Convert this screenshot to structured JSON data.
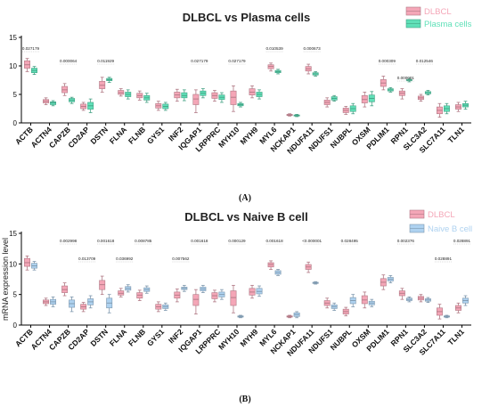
{
  "chart_data": [
    {
      "panel_label": "(A)",
      "type": "box",
      "title": "DLBCL vs Plasma cells",
      "xlabel": "",
      "ylabel": "",
      "ylim": [
        0,
        15
      ],
      "yticks": [
        "0",
        "5",
        "10",
        "15"
      ],
      "categories": [
        "ACTB",
        "ACTN4",
        "CAPZB",
        "CD2AP",
        "DSTN",
        "FLNA",
        "FLNB",
        "GYS1",
        "INF2",
        "IQGAP1",
        "LRPPRC",
        "MYH10",
        "MYH9",
        "MYL6",
        "NCKAP1",
        "NDUFA11",
        "NDUFS1",
        "NUBPL",
        "OXSM",
        "PDLIM1",
        "RPN1",
        "SLC3A2",
        "SLC7A11",
        "TLN1"
      ],
      "series": [
        {
          "name": "DLBCL",
          "color": "#f4a6b7",
          "box": [
            [
              9.0,
              9.6,
              10.2,
              10.9,
              11.3
            ],
            [
              3.2,
              3.5,
              3.8,
              4.1,
              4.4
            ],
            [
              4.8,
              5.3,
              5.8,
              6.4,
              6.9
            ],
            [
              2.2,
              2.5,
              2.9,
              3.3,
              3.6
            ],
            [
              5.4,
              6.0,
              6.6,
              7.3,
              8.0
            ],
            [
              4.7,
              5.0,
              5.3,
              5.7,
              6.0
            ],
            [
              4.0,
              4.4,
              4.8,
              5.2,
              5.6
            ],
            [
              2.2,
              2.6,
              3.0,
              3.4,
              3.8
            ],
            [
              3.8,
              4.4,
              4.9,
              5.4,
              5.9
            ],
            [
              1.8,
              3.2,
              4.2,
              5.0,
              5.8
            ],
            [
              3.8,
              4.3,
              4.8,
              5.3,
              5.7
            ],
            [
              2.0,
              3.2,
              4.5,
              5.6,
              6.5
            ],
            [
              4.4,
              4.9,
              5.4,
              6.0,
              6.5
            ],
            [
              9.1,
              9.5,
              9.9,
              10.2,
              10.5
            ],
            [
              1.2,
              1.3,
              1.4,
              1.5,
              1.6
            ],
            [
              8.6,
              9.1,
              9.5,
              9.9,
              10.3
            ],
            [
              2.8,
              3.2,
              3.6,
              4.0,
              4.4
            ],
            [
              1.5,
              1.8,
              2.2,
              2.6,
              2.9
            ],
            [
              2.8,
              3.5,
              4.1,
              4.8,
              5.4
            ],
            [
              5.8,
              6.4,
              7.0,
              7.6,
              8.2
            ],
            [
              4.2,
              4.8,
              5.2,
              5.6,
              6.0
            ],
            [
              3.8,
              4.1,
              4.4,
              4.7,
              5.0
            ],
            [
              1.0,
              1.6,
              2.2,
              2.8,
              3.4
            ],
            [
              2.0,
              2.4,
              2.8,
              3.2,
              3.6
            ]
          ]
        },
        {
          "name": "Plasma cells",
          "color": "#5fe0b8",
          "box": [
            [
              8.5,
              8.8,
              9.2,
              9.6,
              9.9
            ],
            [
              3.0,
              3.2,
              3.5,
              3.7,
              3.9
            ],
            [
              3.4,
              3.7,
              4.0,
              4.3,
              4.5
            ],
            [
              1.8,
              2.4,
              3.0,
              3.6,
              4.2
            ],
            [
              7.1,
              7.4,
              7.6,
              7.8,
              8.0
            ],
            [
              4.2,
              4.6,
              5.0,
              5.4,
              5.8
            ],
            [
              3.6,
              4.0,
              4.4,
              4.8,
              5.2
            ],
            [
              2.2,
              2.5,
              2.9,
              3.3,
              3.6
            ],
            [
              3.9,
              4.4,
              4.8,
              5.3,
              5.8
            ],
            [
              4.4,
              4.8,
              5.2,
              5.6,
              6.0
            ],
            [
              3.6,
              4.1,
              4.5,
              4.9,
              5.3
            ],
            [
              2.8,
              3.0,
              3.2,
              3.4,
              3.6
            ],
            [
              4.2,
              4.6,
              5.0,
              5.4,
              5.8
            ],
            [
              8.6,
              8.8,
              9.0,
              9.2,
              9.4
            ],
            [
              1.1,
              1.2,
              1.3,
              1.4,
              1.5
            ],
            [
              8.2,
              8.4,
              8.6,
              8.8,
              9.0
            ],
            [
              3.8,
              4.0,
              4.3,
              4.6,
              4.8
            ],
            [
              1.6,
              2.0,
              2.5,
              3.0,
              3.4
            ],
            [
              3.0,
              3.7,
              4.3,
              4.9,
              5.5
            ],
            [
              5.4,
              5.6,
              5.8,
              6.0,
              6.2
            ],
            [
              7.2,
              7.4,
              7.5,
              7.6,
              7.8
            ],
            [
              4.9,
              5.1,
              5.3,
              5.5,
              5.7
            ],
            [
              1.6,
              2.0,
              2.5,
              3.0,
              3.4
            ],
            [
              2.4,
              2.8,
              3.1,
              3.4,
              3.8
            ]
          ]
        }
      ],
      "annotations": [
        {
          "category": "ACTB",
          "row": 0,
          "text": "0.027179"
        },
        {
          "category": "CAPZB",
          "row": 1,
          "text": "0.000064"
        },
        {
          "category": "DSTN",
          "row": 1,
          "text": "0.011929"
        },
        {
          "category": "IQGAP1",
          "row": 1,
          "text": "0.027179"
        },
        {
          "category": "MYH10",
          "row": 1,
          "text": "0.027179"
        },
        {
          "category": "MYL6",
          "row": 0,
          "text": "0.010539"
        },
        {
          "category": "NDUFA11",
          "row": 0,
          "text": "0.000673"
        },
        {
          "category": "PDLIM1",
          "row": 1,
          "text": "0.000309"
        },
        {
          "category": "RPN1",
          "row": 2,
          "text": "0.000001"
        },
        {
          "category": "SLC3A2",
          "row": 1,
          "text": "0.012546"
        }
      ],
      "legend_position": "top-right"
    },
    {
      "panel_label": "(B)",
      "type": "box",
      "title": "DLBCL vs Naive B cell",
      "xlabel": "",
      "ylabel": "mRNA expression level",
      "ylim": [
        0,
        15
      ],
      "yticks": [
        "0",
        "5",
        "10",
        "15"
      ],
      "categories": [
        "ACTB",
        "ACTN4",
        "CAPZB",
        "CD2AP",
        "DSTN",
        "FLNA",
        "FLNB",
        "GYS1",
        "INF2",
        "IQGAP1",
        "LRPPRC",
        "MYH10",
        "MYH9",
        "MYL6",
        "NCKAP1",
        "NDUFA11",
        "NDUFS1",
        "NUBPL",
        "OXSM",
        "PDLIM1",
        "RPN1",
        "SLC3A2",
        "SLC7A11",
        "TLN1"
      ],
      "series": [
        {
          "name": "DLBCL",
          "color": "#f4a6b7",
          "box": [
            [
              9.0,
              9.6,
              10.2,
              10.9,
              11.3
            ],
            [
              3.2,
              3.5,
              3.8,
              4.1,
              4.4
            ],
            [
              4.8,
              5.3,
              5.8,
              6.4,
              6.9
            ],
            [
              2.2,
              2.6,
              3.0,
              3.4,
              3.7
            ],
            [
              5.0,
              5.8,
              6.6,
              7.3,
              8.0
            ],
            [
              4.6,
              4.9,
              5.2,
              5.6,
              6.0
            ],
            [
              4.0,
              4.4,
              4.9,
              5.3,
              5.7
            ],
            [
              2.2,
              2.6,
              3.0,
              3.4,
              3.8
            ],
            [
              3.8,
              4.4,
              4.9,
              5.4,
              5.9
            ],
            [
              1.8,
              3.2,
              4.2,
              5.0,
              5.8
            ],
            [
              3.8,
              4.3,
              4.8,
              5.3,
              5.7
            ],
            [
              2.0,
              3.2,
              4.5,
              5.6,
              6.5
            ],
            [
              4.4,
              4.9,
              5.4,
              6.0,
              6.5
            ],
            [
              9.1,
              9.5,
              9.9,
              10.2,
              10.5
            ],
            [
              1.2,
              1.3,
              1.4,
              1.5,
              1.6
            ],
            [
              8.6,
              9.1,
              9.5,
              9.9,
              10.3
            ],
            [
              2.8,
              3.2,
              3.6,
              4.0,
              4.4
            ],
            [
              1.5,
              1.8,
              2.2,
              2.6,
              2.9
            ],
            [
              2.8,
              3.5,
              4.1,
              4.8,
              5.4
            ],
            [
              5.8,
              6.4,
              7.0,
              7.6,
              8.2
            ],
            [
              4.2,
              4.8,
              5.2,
              5.6,
              6.0
            ],
            [
              3.8,
              4.1,
              4.4,
              4.7,
              5.0
            ],
            [
              1.0,
              1.6,
              2.2,
              2.8,
              3.4
            ],
            [
              2.0,
              2.4,
              2.8,
              3.2,
              3.6
            ]
          ]
        },
        {
          "name": "Naive B cell",
          "color": "#aed2f0",
          "box": [
            [
              9.0,
              9.3,
              9.7,
              10.1,
              10.4
            ],
            [
              3.0,
              3.4,
              3.8,
              4.2,
              4.6
            ],
            [
              2.2,
              2.9,
              3.5,
              4.1,
              4.6
            ],
            [
              2.8,
              3.3,
              3.8,
              4.3,
              4.8
            ],
            [
              2.0,
              2.8,
              3.6,
              4.4,
              5.0
            ],
            [
              5.4,
              5.7,
              6.0,
              6.3,
              6.6
            ],
            [
              5.2,
              5.5,
              5.8,
              6.1,
              6.4
            ],
            [
              2.4,
              2.7,
              3.0,
              3.3,
              3.6
            ],
            [
              5.5,
              5.8,
              6.0,
              6.2,
              6.5
            ],
            [
              5.3,
              5.6,
              5.9,
              6.2,
              6.5
            ],
            [
              4.2,
              4.6,
              5.0,
              5.4,
              5.8
            ],
            [
              1.2,
              1.3,
              1.4,
              1.5,
              1.6
            ],
            [
              4.7,
              5.1,
              5.5,
              6.0,
              6.4
            ],
            [
              8.1,
              8.3,
              8.6,
              8.9,
              9.1
            ],
            [
              1.2,
              1.4,
              1.7,
              2.0,
              2.2
            ],
            [
              6.7,
              6.8,
              6.9,
              7.0,
              7.1
            ],
            [
              2.4,
              2.7,
              3.0,
              3.3,
              3.6
            ],
            [
              3.0,
              3.5,
              4.0,
              4.5,
              5.0
            ],
            [
              3.0,
              3.3,
              3.6,
              3.9,
              4.2
            ],
            [
              6.9,
              7.2,
              7.5,
              7.8,
              8.1
            ],
            [
              3.8,
              4.0,
              4.2,
              4.4,
              4.6
            ],
            [
              3.7,
              3.9,
              4.1,
              4.3,
              4.5
            ],
            [
              1.2,
              1.3,
              1.4,
              1.5,
              1.6
            ],
            [
              3.2,
              3.6,
              4.0,
              4.4,
              4.8
            ]
          ]
        }
      ],
      "annotations": [
        {
          "category": "CAPZB",
          "row": 0,
          "text": "0.002998"
        },
        {
          "category": "CD2AP",
          "row": 1,
          "text": "0.013709"
        },
        {
          "category": "DSTN",
          "row": 0,
          "text": "0.001618"
        },
        {
          "category": "FLNA",
          "row": 1,
          "text": "0.036992"
        },
        {
          "category": "FLNB",
          "row": 0,
          "text": "0.008785"
        },
        {
          "category": "INF2",
          "row": 1,
          "text": "0.007562"
        },
        {
          "category": "IQGAP1",
          "row": 0,
          "text": "0.001618"
        },
        {
          "category": "MYH10",
          "row": 0,
          "text": "0.000129"
        },
        {
          "category": "MYL6",
          "row": 0,
          "text": "0.001618"
        },
        {
          "category": "NDUFA11",
          "row": 0,
          "text": "<0.000001"
        },
        {
          "category": "NUBPL",
          "row": 0,
          "text": "0.028495"
        },
        {
          "category": "RPN1",
          "row": 0,
          "text": "0.002376"
        },
        {
          "category": "SLC7A11",
          "row": 1,
          "text": "0.028891"
        },
        {
          "category": "TLN1",
          "row": 0,
          "text": "0.028891"
        }
      ],
      "legend_position": "top-right"
    }
  ]
}
